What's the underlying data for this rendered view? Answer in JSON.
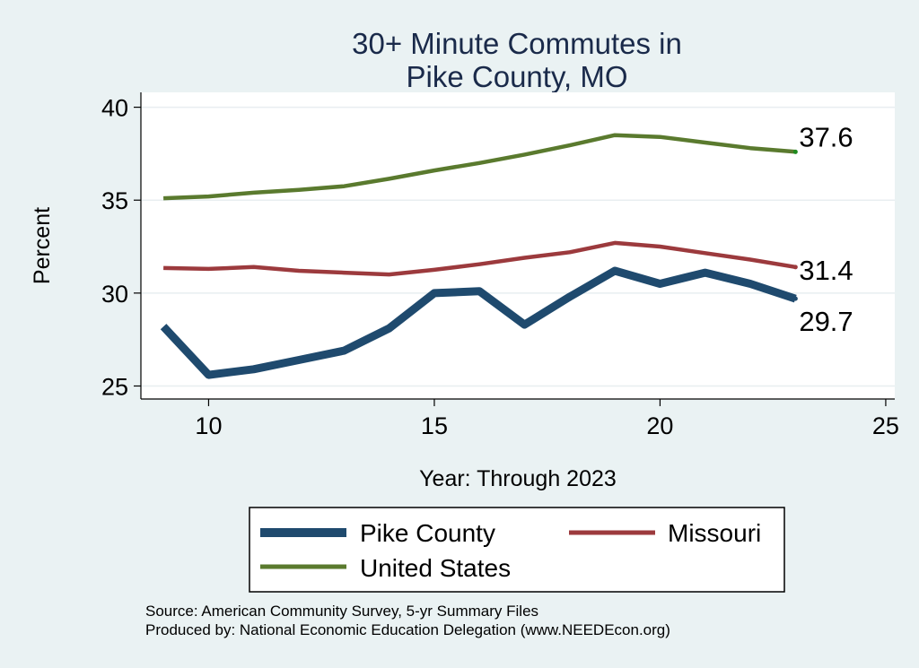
{
  "chart_data": {
    "type": "line",
    "title_lines": [
      "30+ Minute Commutes in",
      "Pike County, MO"
    ],
    "xlabel": "Year: Through 2023",
    "ylabel": "Percent",
    "xlim": [
      8.5,
      25.2
    ],
    "ylim": [
      24.3,
      40.8
    ],
    "xticks": [
      10,
      15,
      20,
      25
    ],
    "yticks": [
      25,
      30,
      35,
      40
    ],
    "grid": true,
    "x": [
      9,
      10,
      11,
      12,
      13,
      14,
      15,
      16,
      17,
      18,
      19,
      20,
      21,
      22,
      23
    ],
    "series": [
      {
        "name": "Pike County",
        "color": "#1f4a6e",
        "values": [
          28.2,
          25.6,
          25.9,
          26.4,
          26.9,
          28.1,
          30.0,
          30.1,
          28.3,
          29.8,
          31.2,
          30.5,
          31.1,
          30.5,
          29.7
        ],
        "end_label": "29.7"
      },
      {
        "name": "Missouri",
        "color": "#9c3a3d",
        "values": [
          31.35,
          31.3,
          31.4,
          31.2,
          31.1,
          31.0,
          31.25,
          31.55,
          31.9,
          32.2,
          32.7,
          32.5,
          32.15,
          31.8,
          31.4
        ],
        "end_label": "31.4"
      },
      {
        "name": "United States",
        "color": "#5a7a2e",
        "values": [
          35.1,
          35.2,
          35.4,
          35.55,
          35.75,
          36.15,
          36.6,
          37.0,
          37.45,
          37.95,
          38.5,
          38.4,
          38.1,
          37.8,
          37.6
        ],
        "end_label": "37.6"
      }
    ],
    "legend": {
      "position": "bottom",
      "entries": [
        "Pike County",
        "Missouri",
        "United States"
      ]
    },
    "source_lines": [
      "Source: American Community Survey, 5-yr Summary Files",
      "Produced by: National Economic Education Delegation (www.NEEDEcon.org)"
    ]
  }
}
